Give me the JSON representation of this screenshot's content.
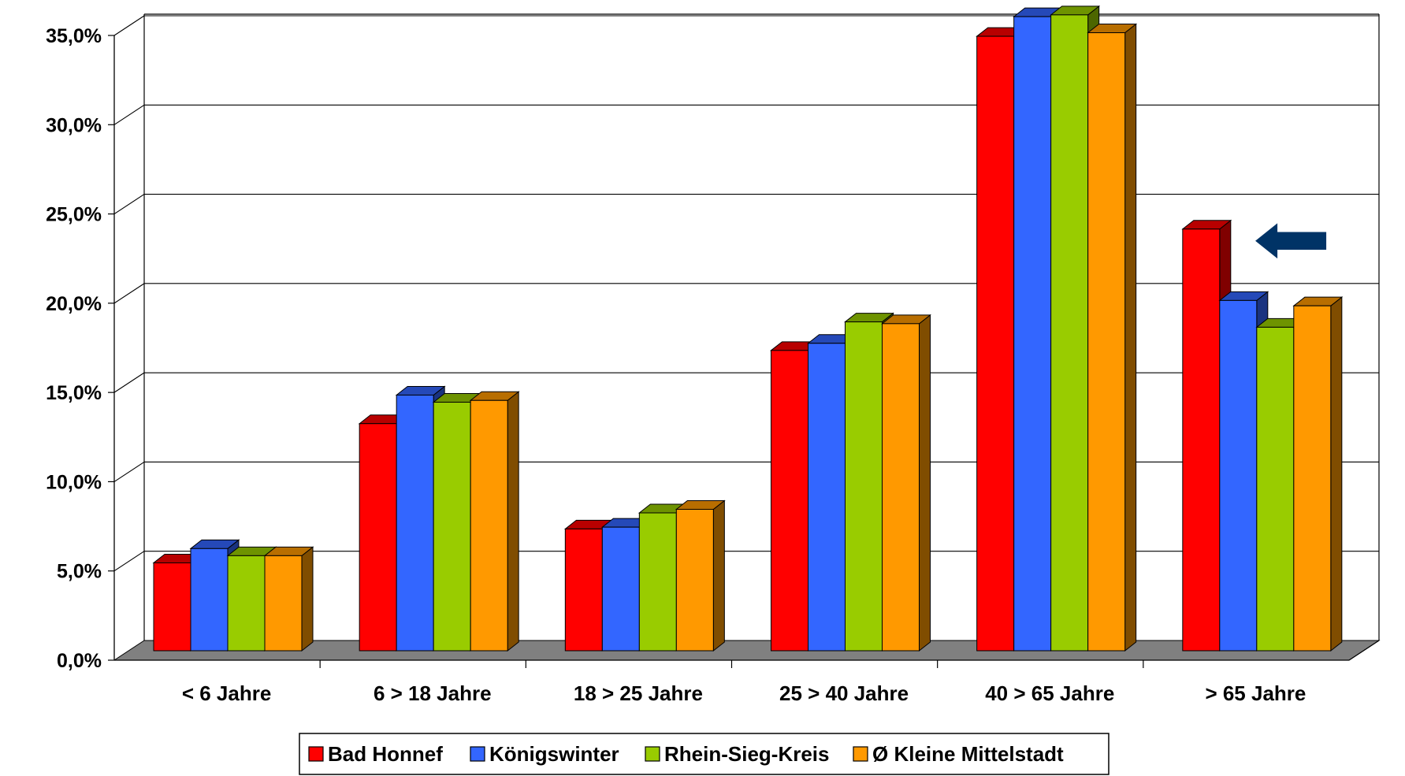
{
  "chart_data": {
    "type": "bar",
    "categories": [
      "< 6 Jahre",
      "6 > 18 Jahre",
      "18 > 25 Jahre",
      "25 > 40 Jahre",
      "40 > 65 Jahre",
      "> 65 Jahre"
    ],
    "series": [
      {
        "name": "Bad Honnef",
        "color": "#ff0000",
        "values": [
          5.1,
          12.9,
          7.0,
          17.0,
          34.6,
          23.8
        ]
      },
      {
        "name": "Königswinter",
        "color": "#3366ff",
        "values": [
          5.9,
          14.5,
          7.1,
          17.4,
          35.7,
          19.8
        ]
      },
      {
        "name": "Rhein-Sieg-Kreis",
        "color": "#99cc00",
        "values": [
          5.5,
          14.1,
          7.9,
          18.6,
          35.8,
          18.3
        ]
      },
      {
        "name": "Ø Kleine Mittelstadt",
        "color": "#ff9900",
        "values": [
          5.5,
          14.2,
          8.1,
          18.5,
          34.8,
          19.5
        ]
      }
    ],
    "yticks": [
      "0,0%",
      "5,0%",
      "10,0%",
      "15,0%",
      "20,0%",
      "25,0%",
      "30,0%",
      "35,0%"
    ],
    "ylim": [
      0,
      35
    ],
    "grid": true,
    "legend_position": "bottom",
    "annotation": {
      "type": "arrow",
      "icon": "left-arrow-icon",
      "target_category": "> 65 Jahre",
      "target_series": "Bad Honnef",
      "color": "#003366"
    }
  }
}
